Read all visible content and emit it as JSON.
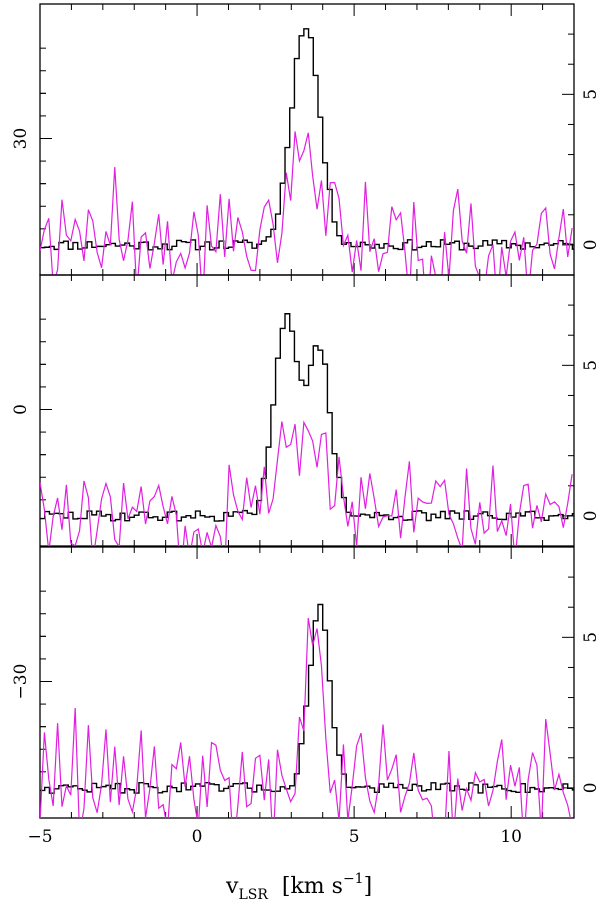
{
  "chart_data": {
    "type": "line",
    "xlabel_main": "v",
    "xlabel_sub": "LSR",
    "xlabel_unit_pre": "[km s",
    "xlabel_unit_sup": "−1",
    "xlabel_unit_post": "]",
    "xlim": [
      -5,
      12
    ],
    "x_ticks": [
      {
        "value": -5,
        "label": "−5"
      },
      {
        "value": 0,
        "label": "0"
      },
      {
        "value": 5,
        "label": "5"
      },
      {
        "value": 10,
        "label": "10"
      }
    ],
    "colors": {
      "black_series": "#000000",
      "magenta_series": "#e020e0",
      "axes": "#000000"
    },
    "panels": [
      {
        "left_label": {
          "value": 30,
          "text": "30"
        },
        "right_ylim": [
          -1,
          8
        ],
        "right_ticks": [
          {
            "value": 0,
            "label": "0"
          },
          {
            "value": 5,
            "label": "5"
          }
        ],
        "black_peaks": [
          {
            "center": 3.45,
            "amp": 7.35,
            "width": 0.45
          }
        ],
        "magenta_peaks": [
          {
            "center": 3.4,
            "amp": 3.0,
            "width": 0.5
          }
        ],
        "magenta_noise": 1.0,
        "seed": 11
      },
      {
        "left_label": {
          "value": 0,
          "text": "0"
        },
        "right_ylim": [
          -1,
          8
        ],
        "right_ticks": [
          {
            "value": 0,
            "label": "0"
          },
          {
            "value": 5,
            "label": "5"
          }
        ],
        "black_peaks": [
          {
            "center": 2.85,
            "amp": 6.7,
            "width": 0.38
          },
          {
            "center": 3.9,
            "amp": 5.5,
            "width": 0.35
          }
        ],
        "magenta_peaks": [
          {
            "center": 2.95,
            "amp": 2.9,
            "width": 0.42
          },
          {
            "center": 3.9,
            "amp": 2.4,
            "width": 0.3
          }
        ],
        "magenta_noise": 0.9,
        "seed": 29
      },
      {
        "left_label": {
          "value": -30,
          "text": "−30"
        },
        "right_ylim": [
          -1,
          8
        ],
        "right_ticks": [
          {
            "value": 0,
            "label": "0"
          },
          {
            "value": 5,
            "label": "5"
          }
        ],
        "black_peaks": [
          {
            "center": 3.9,
            "amp": 6.0,
            "width": 0.33
          }
        ],
        "magenta_peaks": [
          {
            "center": 3.8,
            "amp": 4.8,
            "width": 0.3
          }
        ],
        "magenta_noise": 1.0,
        "seed": 47
      }
    ]
  }
}
